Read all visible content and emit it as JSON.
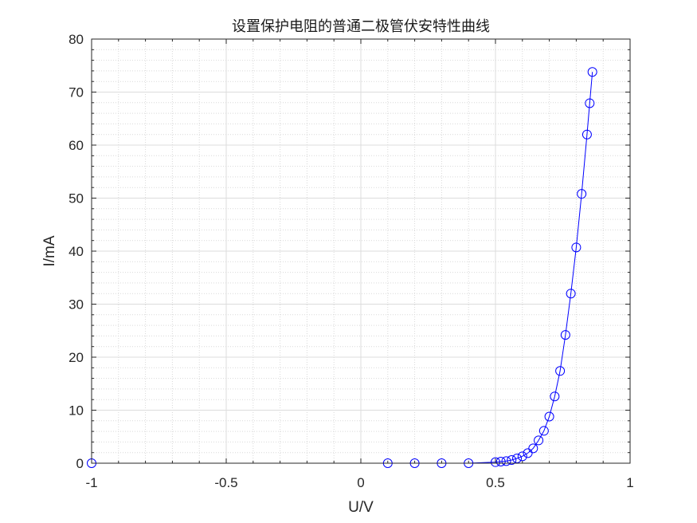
{
  "chart_data": {
    "type": "line",
    "title": "设置保护电阻的普通二极管伏安特性曲线",
    "xlabel": "U/V",
    "ylabel": "I/mA",
    "xlim": [
      -1,
      1
    ],
    "ylim": [
      0,
      80
    ],
    "xticks": [
      "-1",
      "-0.5",
      "0",
      "0.5",
      "1"
    ],
    "yticks": [
      "0",
      "10",
      "20",
      "30",
      "40",
      "50",
      "60",
      "70",
      "80"
    ],
    "grid": true,
    "minor_grid": true,
    "marker": "circle",
    "color": "#0000ff",
    "series": [
      {
        "x": [
          -1,
          0.1,
          0.2,
          0.3,
          0.4,
          0.5,
          0.52,
          0.54,
          0.56,
          0.58,
          0.6,
          0.62,
          0.64,
          0.66,
          0.68,
          0.7,
          0.72,
          0.74,
          0.76,
          0.78,
          0.8,
          0.82,
          0.84,
          0.85,
          0.86
        ],
        "y": [
          0,
          0,
          0,
          0,
          0,
          0.2,
          0.3,
          0.4,
          0.6,
          0.9,
          1.3,
          1.9,
          2.8,
          4.3,
          6.1,
          8.8,
          12.6,
          17.4,
          24.2,
          32.0,
          40.7,
          50.8,
          62.0,
          67.9,
          73.8
        ]
      }
    ]
  }
}
